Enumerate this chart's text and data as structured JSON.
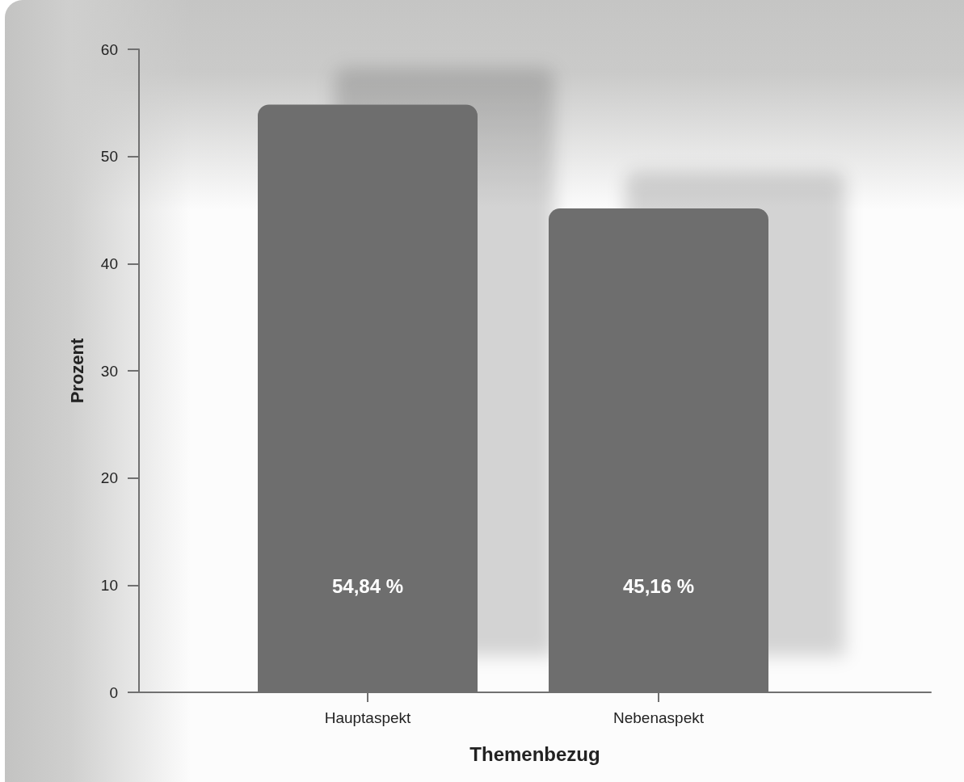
{
  "chart_data": {
    "type": "bar",
    "categories": [
      "Hauptaspekt",
      "Nebenaspekt"
    ],
    "values": [
      54.84,
      45.16
    ],
    "color": "#6e6e6e",
    "xlabel": "Themenbezug",
    "ylabel": "Prozent",
    "ylim": [
      0,
      60
    ],
    "yticks": [
      0,
      10,
      20,
      30,
      40,
      50,
      60
    ],
    "value_labels": [
      "54,84 %",
      "45,16 %"
    ]
  }
}
